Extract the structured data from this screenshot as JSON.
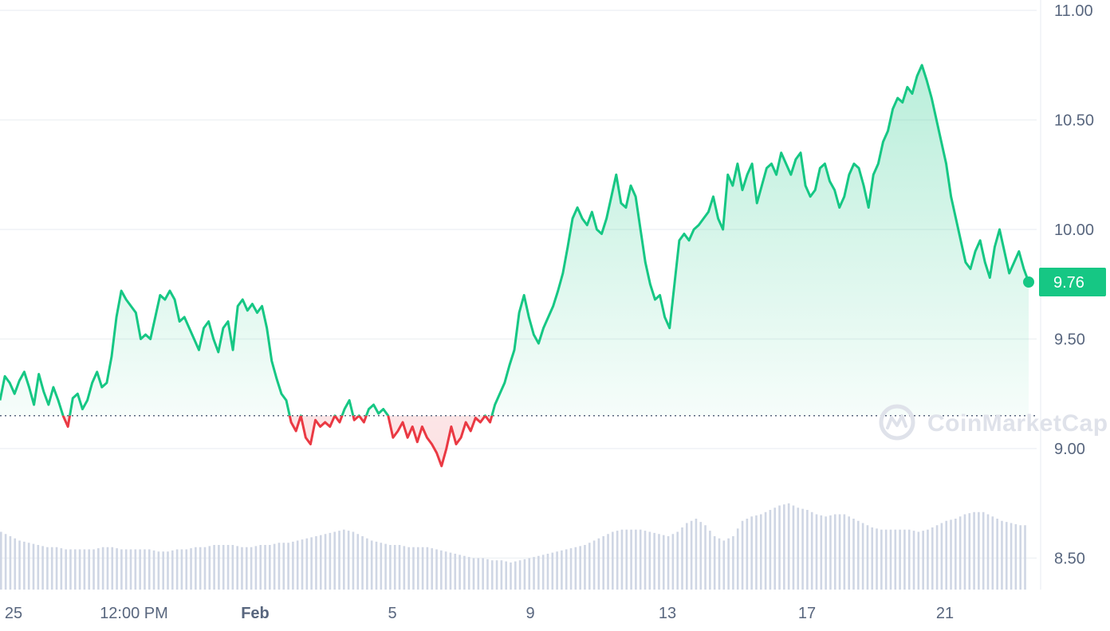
{
  "chart_data": {
    "type": "area",
    "baseline": 9.15,
    "ylim": [
      8.4,
      11.0
    ],
    "y_ticks": [
      "11.00",
      "10.50",
      "10.00",
      "9.50",
      "9.00",
      "8.50"
    ],
    "x_ticks": [
      {
        "label": "25",
        "bold": false
      },
      {
        "label": "12:00 PM",
        "bold": false
      },
      {
        "label": "Feb",
        "bold": true
      },
      {
        "label": "5",
        "bold": false
      },
      {
        "label": "9",
        "bold": false
      },
      {
        "label": "13",
        "bold": false
      },
      {
        "label": "17",
        "bold": false
      },
      {
        "label": "21",
        "bold": false
      }
    ],
    "current_price": "9.76",
    "watermark": "CoinMarketCap",
    "colors": {
      "up": "#16c784",
      "down": "#ea3943",
      "badge": "#16c784",
      "volume": "#cfd6e4",
      "grid": "#eff2f5"
    },
    "price": [
      9.22,
      9.33,
      9.3,
      9.25,
      9.31,
      9.35,
      9.28,
      9.2,
      9.34,
      9.26,
      9.2,
      9.28,
      9.22,
      9.15,
      9.1,
      9.23,
      9.25,
      9.18,
      9.22,
      9.3,
      9.35,
      9.28,
      9.3,
      9.42,
      9.6,
      9.72,
      9.68,
      9.65,
      9.62,
      9.5,
      9.52,
      9.5,
      9.6,
      9.7,
      9.68,
      9.72,
      9.68,
      9.58,
      9.6,
      9.55,
      9.5,
      9.45,
      9.55,
      9.58,
      9.5,
      9.44,
      9.55,
      9.58,
      9.45,
      9.65,
      9.68,
      9.63,
      9.66,
      9.62,
      9.65,
      9.55,
      9.4,
      9.32,
      9.25,
      9.22,
      9.12,
      9.08,
      9.15,
      9.05,
      9.02,
      9.13,
      9.1,
      9.12,
      9.1,
      9.15,
      9.12,
      9.18,
      9.22,
      9.13,
      9.15,
      9.12,
      9.18,
      9.2,
      9.16,
      9.18,
      9.15,
      9.05,
      9.08,
      9.12,
      9.05,
      9.1,
      9.03,
      9.1,
      9.05,
      9.02,
      8.98,
      8.92,
      9.0,
      9.1,
      9.02,
      9.05,
      9.12,
      9.08,
      9.14,
      9.12,
      9.15,
      9.12,
      9.2,
      9.25,
      9.3,
      9.38,
      9.45,
      9.62,
      9.7,
      9.6,
      9.52,
      9.48,
      9.55,
      9.6,
      9.65,
      9.72,
      9.8,
      9.92,
      10.05,
      10.1,
      10.05,
      10.02,
      10.08,
      10.0,
      9.98,
      10.05,
      10.15,
      10.25,
      10.12,
      10.1,
      10.2,
      10.15,
      10.0,
      9.85,
      9.75,
      9.68,
      9.7,
      9.6,
      9.55,
      9.75,
      9.95,
      9.98,
      9.95,
      10.0,
      10.02,
      10.05,
      10.08,
      10.15,
      10.05,
      10.0,
      10.25,
      10.2,
      10.3,
      10.18,
      10.25,
      10.3,
      10.12,
      10.2,
      10.28,
      10.3,
      10.25,
      10.35,
      10.3,
      10.25,
      10.32,
      10.35,
      10.2,
      10.15,
      10.18,
      10.28,
      10.3,
      10.22,
      10.18,
      10.1,
      10.15,
      10.25,
      10.3,
      10.28,
      10.2,
      10.1,
      10.25,
      10.3,
      10.4,
      10.45,
      10.55,
      10.6,
      10.58,
      10.65,
      10.62,
      10.7,
      10.75,
      10.68,
      10.6,
      10.5,
      10.4,
      10.3,
      10.15,
      10.05,
      9.95,
      9.85,
      9.82,
      9.9,
      9.95,
      9.85,
      9.78,
      9.92,
      10.0,
      9.9,
      9.8,
      9.85,
      9.9,
      9.82,
      9.76
    ],
    "volume": [
      8.62,
      8.6,
      8.58,
      8.57,
      8.56,
      8.55,
      8.55,
      8.54,
      8.54,
      8.54,
      8.54,
      8.55,
      8.55,
      8.54,
      8.54,
      8.54,
      8.54,
      8.53,
      8.53,
      8.54,
      8.54,
      8.55,
      8.55,
      8.56,
      8.56,
      8.56,
      8.55,
      8.55,
      8.56,
      8.56,
      8.57,
      8.57,
      8.58,
      8.59,
      8.6,
      8.61,
      8.62,
      8.63,
      8.62,
      8.6,
      8.58,
      8.57,
      8.56,
      8.56,
      8.55,
      8.55,
      8.55,
      8.54,
      8.53,
      8.52,
      8.51,
      8.5,
      8.5,
      8.49,
      8.49,
      8.48,
      8.49,
      8.5,
      8.51,
      8.52,
      8.53,
      8.54,
      8.55,
      8.56,
      8.58,
      8.6,
      8.62,
      8.63,
      8.63,
      8.63,
      8.62,
      8.61,
      8.6,
      8.62,
      8.66,
      8.68,
      8.65,
      8.6,
      8.58,
      8.6,
      8.67,
      8.69,
      8.7,
      8.72,
      8.74,
      8.75,
      8.73,
      8.72,
      8.7,
      8.69,
      8.7,
      8.7,
      8.68,
      8.66,
      8.64,
      8.63,
      8.63,
      8.63,
      8.63,
      8.62,
      8.63,
      8.65,
      8.67,
      8.68,
      8.7,
      8.71,
      8.71,
      8.69,
      8.67,
      8.66,
      8.65
    ]
  }
}
